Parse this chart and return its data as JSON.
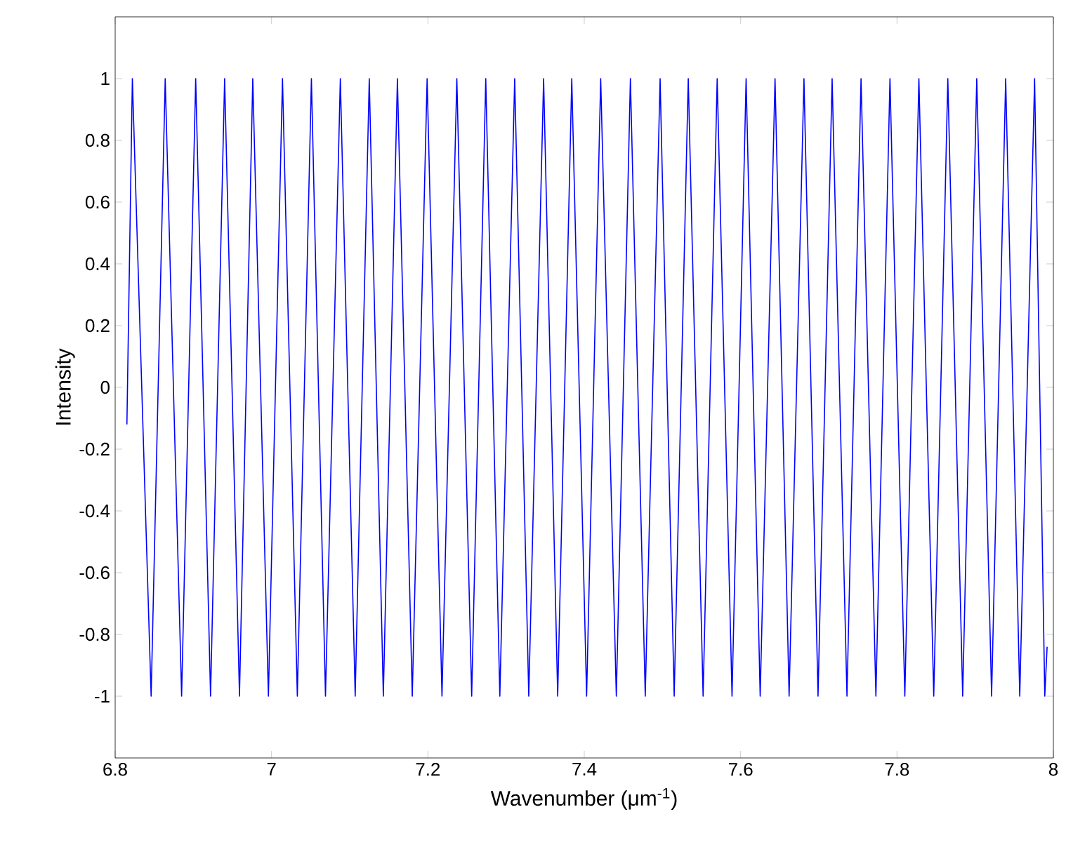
{
  "chart_data": {
    "type": "line",
    "xlabel": "Wavenumber (μm$^{-1}$)",
    "ylabel": "Intensity",
    "x": [
      6.815,
      6.822,
      6.846,
      6.864,
      6.885,
      6.903,
      6.922,
      6.94,
      6.959,
      6.976,
      6.996,
      7.014,
      7.033,
      7.051,
      7.069,
      7.088,
      7.107,
      7.125,
      7.143,
      7.161,
      7.18,
      7.199,
      7.218,
      7.237,
      7.256,
      7.274,
      7.292,
      7.311,
      7.329,
      7.348,
      7.366,
      7.384,
      7.403,
      7.421,
      7.441,
      7.459,
      7.478,
      7.497,
      7.515,
      7.533,
      7.552,
      7.57,
      7.589,
      7.607,
      7.625,
      7.644,
      7.662,
      7.681,
      7.699,
      7.717,
      7.736,
      7.754,
      7.773,
      7.791,
      7.81,
      7.828,
      7.847,
      7.865,
      7.884,
      7.902,
      7.921,
      7.939,
      7.957,
      7.976,
      7.989,
      7.992
    ],
    "values": [
      -0.12,
      1,
      -1,
      1,
      -1,
      1,
      -1,
      1,
      -1,
      1,
      -1,
      1,
      -1,
      1,
      -1,
      1,
      -1,
      1,
      -1,
      1,
      -1,
      1,
      -1,
      1,
      -1,
      1,
      -1,
      1,
      -1,
      1,
      -1,
      1,
      -1,
      1,
      -1,
      1,
      -1,
      1,
      -1,
      1,
      -1,
      1,
      -1,
      1,
      -1,
      1,
      -1,
      1,
      -1,
      1,
      -1,
      1,
      -1,
      1,
      -1,
      1,
      -1,
      1,
      -1,
      1,
      -1,
      1,
      -1,
      1,
      -1,
      -0.84
    ],
    "color": "#0000ff",
    "xlim": [
      6.8,
      8
    ],
    "ylim": [
      -1.2,
      1.2
    ],
    "xticks": [
      6.8,
      7,
      7.2,
      7.4,
      7.6,
      7.8,
      8
    ],
    "yticks": [
      -1,
      -0.8,
      -0.6,
      -0.4,
      -0.2,
      0,
      0.2,
      0.4,
      0.6,
      0.8,
      1
    ],
    "grid": false
  }
}
